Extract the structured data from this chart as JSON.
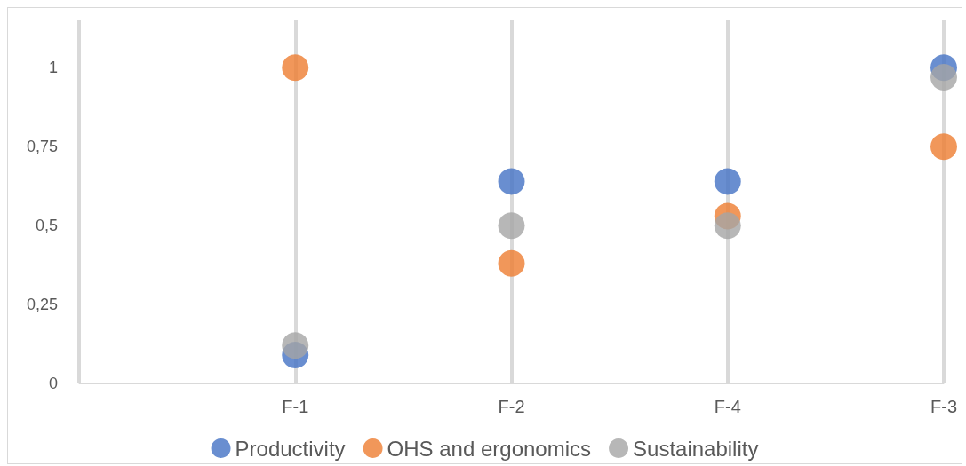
{
  "chart_data": {
    "type": "scatter",
    "categories": [
      null,
      "F-1",
      "F-2",
      "F-4",
      "F-3"
    ],
    "series": [
      {
        "name": "Productivity",
        "color": "#4472c4",
        "values": [
          null,
          0.09,
          0.64,
          0.64,
          1
        ]
      },
      {
        "name": "OHS and ergonomics",
        "color": "#ed7d31",
        "values": [
          null,
          1,
          0.38,
          0.53,
          0.75
        ]
      },
      {
        "name": "Sustainability",
        "color": "#a5a5a5",
        "values": [
          null,
          0.12,
          0.5,
          0.5,
          0.97
        ]
      }
    ],
    "ylim": [
      0,
      1.15
    ],
    "yticks": [
      0,
      {
        "value": 0.25,
        "label": "0,25"
      },
      {
        "value": 0.5,
        "label": "0,5"
      },
      {
        "value": 0.75,
        "label": "0,75"
      },
      1
    ],
    "grid": "x",
    "legend": "bottom",
    "marker": "circle"
  }
}
